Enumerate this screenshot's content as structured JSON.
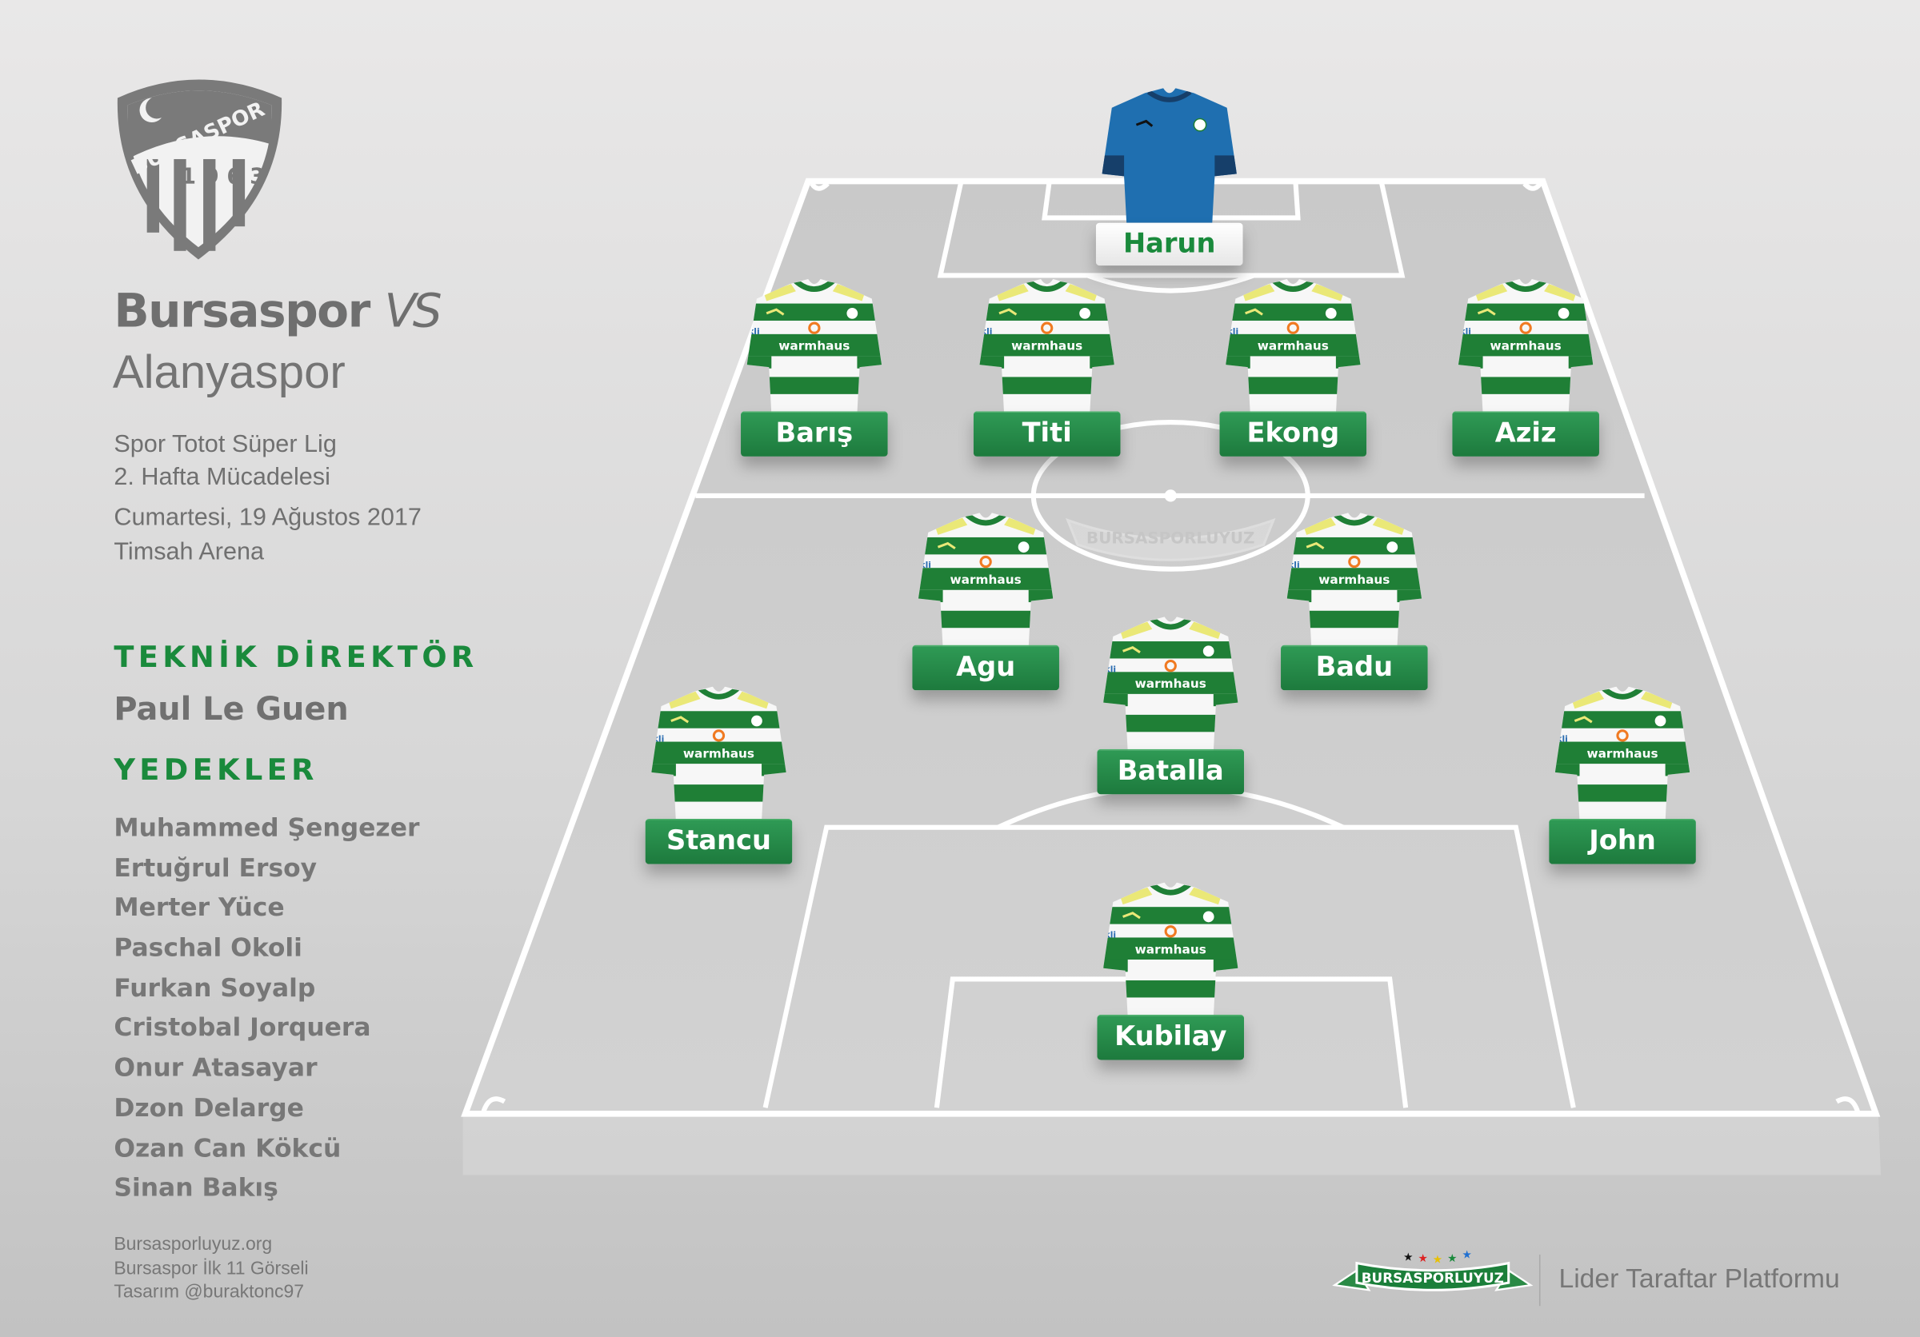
{
  "match": {
    "home": "Bursaspor",
    "vs": "VS",
    "away": "Alanyaspor",
    "league": "Spor Totot Süper Lig",
    "week": "2. Hafta Mücadelesi",
    "date": "Cumartesi, 19 Ağustos 2017",
    "venue": "Timsah Arena"
  },
  "crest": {
    "text": "BURSASPOR",
    "year": "1963"
  },
  "coach": {
    "heading": "TEKNİK DİREKTÖR",
    "name": "Paul Le Guen"
  },
  "subs": {
    "heading": "YEDEKLER",
    "players": [
      "Muhammed Şengezer",
      "Ertuğrul Ersoy",
      "Merter Yüce",
      "Paschal Okoli",
      "Furkan Soyalp",
      "Cristobal Jorquera",
      "Onur Atasayar",
      "Dzon Delarge",
      "Ozan Can Kökcü",
      "Sinan Bakış"
    ]
  },
  "footer": {
    "lines": [
      "Bursasporluyuz.org",
      "Bursaspor İlk 11 Görseli",
      "Tasarım @buraktonc97"
    ],
    "tagline": "Lider Taraftar Platformu",
    "logo_text": "BURSASPORLUYUZ"
  },
  "jersey": {
    "sponsor": "warmhaus",
    "sleeve": "kli"
  },
  "lineup": {
    "goalkeeper": "Harun",
    "defenders": [
      "Barış",
      "Titi",
      "Ekong",
      "Aziz"
    ],
    "midfield": [
      "Agu",
      "Batalla",
      "Badu"
    ],
    "wide": [
      "Stancu",
      "John"
    ],
    "forward": "Kubilay"
  },
  "colors": {
    "green": "#1a8a3c",
    "keeper": "#1f6fb0",
    "text": "#6f6f6f"
  }
}
